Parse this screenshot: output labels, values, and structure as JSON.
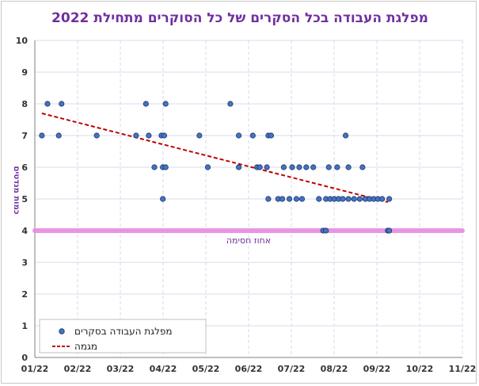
{
  "chart_data": {
    "type": "scatter",
    "title": "מפלגת העבודה בכל הסקרים של כל הסוקרים מתחילת 2022",
    "xlabel": "",
    "ylabel": "כמות מנדטים",
    "xlim": [
      "2022-01-01",
      "2022-11-01"
    ],
    "ylim": [
      0,
      10
    ],
    "x_tick_labels": [
      "01/22",
      "02/22",
      "03/22",
      "04/22",
      "05/22",
      "06/22",
      "07/22",
      "08/22",
      "09/22",
      "10/22",
      "11/22"
    ],
    "y_ticks": [
      0,
      1,
      2,
      3,
      4,
      5,
      6,
      7,
      8,
      9,
      10
    ],
    "grid": true,
    "legend": {
      "position": "bottom-left"
    },
    "threshold": {
      "value": 4,
      "label": "אחוז חסימה",
      "color": "#e88be0"
    },
    "series": [
      {
        "name": "מפלגת העבודה בסקרים",
        "type": "scatter",
        "color": "#4472c4",
        "points": [
          {
            "x": "2022-01-06",
            "y": 7
          },
          {
            "x": "2022-01-10",
            "y": 8
          },
          {
            "x": "2022-01-18",
            "y": 7
          },
          {
            "x": "2022-01-20",
            "y": 8
          },
          {
            "x": "2022-02-14",
            "y": 7
          },
          {
            "x": "2022-03-14",
            "y": 7
          },
          {
            "x": "2022-03-21",
            "y": 8
          },
          {
            "x": "2022-03-23",
            "y": 7
          },
          {
            "x": "2022-03-27",
            "y": 6
          },
          {
            "x": "2022-04-01",
            "y": 7
          },
          {
            "x": "2022-04-02",
            "y": 6
          },
          {
            "x": "2022-04-02",
            "y": 5
          },
          {
            "x": "2022-04-03",
            "y": 7
          },
          {
            "x": "2022-04-04",
            "y": 8
          },
          {
            "x": "2022-04-04",
            "y": 6
          },
          {
            "x": "2022-04-28",
            "y": 7
          },
          {
            "x": "2022-05-04",
            "y": 6
          },
          {
            "x": "2022-05-20",
            "y": 8
          },
          {
            "x": "2022-05-26",
            "y": 6
          },
          {
            "x": "2022-05-26",
            "y": 7
          },
          {
            "x": "2022-06-05",
            "y": 7
          },
          {
            "x": "2022-06-08",
            "y": 6
          },
          {
            "x": "2022-06-10",
            "y": 6
          },
          {
            "x": "2022-06-15",
            "y": 6
          },
          {
            "x": "2022-06-16",
            "y": 5
          },
          {
            "x": "2022-06-16",
            "y": 7
          },
          {
            "x": "2022-06-18",
            "y": 7
          },
          {
            "x": "2022-06-23",
            "y": 5
          },
          {
            "x": "2022-06-26",
            "y": 5
          },
          {
            "x": "2022-06-27",
            "y": 6
          },
          {
            "x": "2022-07-01",
            "y": 5
          },
          {
            "x": "2022-07-03",
            "y": 6
          },
          {
            "x": "2022-07-06",
            "y": 5
          },
          {
            "x": "2022-07-08",
            "y": 6
          },
          {
            "x": "2022-07-10",
            "y": 5
          },
          {
            "x": "2022-07-13",
            "y": 6
          },
          {
            "x": "2022-07-18",
            "y": 6
          },
          {
            "x": "2022-07-22",
            "y": 5
          },
          {
            "x": "2022-07-25",
            "y": 4
          },
          {
            "x": "2022-07-27",
            "y": 4
          },
          {
            "x": "2022-07-27",
            "y": 5
          },
          {
            "x": "2022-07-29",
            "y": 6
          },
          {
            "x": "2022-07-30",
            "y": 5
          },
          {
            "x": "2022-08-02",
            "y": 5
          },
          {
            "x": "2022-08-04",
            "y": 6
          },
          {
            "x": "2022-08-05",
            "y": 5
          },
          {
            "x": "2022-08-08",
            "y": 5
          },
          {
            "x": "2022-08-10",
            "y": 7
          },
          {
            "x": "2022-08-12",
            "y": 6
          },
          {
            "x": "2022-08-12",
            "y": 5
          },
          {
            "x": "2022-08-16",
            "y": 5
          },
          {
            "x": "2022-08-20",
            "y": 5
          },
          {
            "x": "2022-08-22",
            "y": 6
          },
          {
            "x": "2022-08-24",
            "y": 5
          },
          {
            "x": "2022-08-27",
            "y": 5
          },
          {
            "x": "2022-08-30",
            "y": 5
          },
          {
            "x": "2022-09-02",
            "y": 5
          },
          {
            "x": "2022-09-05",
            "y": 5
          },
          {
            "x": "2022-09-09",
            "y": 4
          },
          {
            "x": "2022-09-10",
            "y": 4
          },
          {
            "x": "2022-09-10",
            "y": 5
          }
        ]
      },
      {
        "name": "מגמה",
        "type": "line",
        "style": "dashed",
        "color": "#c00000",
        "points": [
          {
            "x": "2022-01-06",
            "y": 7.7
          },
          {
            "x": "2022-09-09",
            "y": 4.9
          }
        ]
      }
    ]
  }
}
